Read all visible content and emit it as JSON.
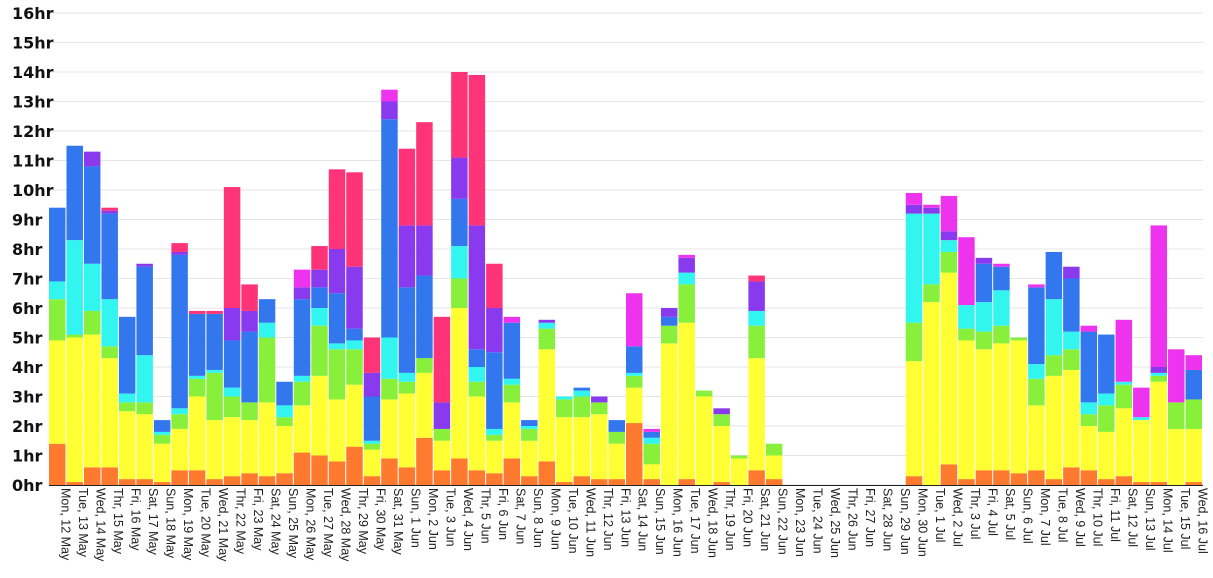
{
  "chart_data": {
    "type": "bar",
    "stacked": true,
    "title": "",
    "xlabel": "",
    "ylabel": "",
    "ylim": [
      0,
      16
    ],
    "grid": true,
    "legend": "none",
    "y_ticks": [
      "0hr",
      "1hr",
      "2hr",
      "3hr",
      "4hr",
      "5hr",
      "6hr",
      "7hr",
      "8hr",
      "9hr",
      "10hr",
      "11hr",
      "12hr",
      "13hr",
      "14hr",
      "15hr",
      "16hr"
    ],
    "categories": [
      "Mon, 12 May",
      "Tue, 13 May",
      "Wed, 14 May",
      "Thr, 15 May",
      "Fri, 16 May",
      "Sat, 17 May",
      "Sun, 18 May",
      "Mon, 19 May",
      "Tue, 20 May",
      "Wed, 21 May",
      "Thr, 22 May",
      "Fri, 23 May",
      "Sat, 24 May",
      "Sun, 25 May",
      "Mon, 26 May",
      "Tue, 27 May",
      "Wed, 28 May",
      "Thr, 29 May",
      "Fri, 30 May",
      "Sat, 31 May",
      "Sun, 1 Jun",
      "Mon, 2 Jun",
      "Tue, 3 Jun",
      "Wed, 4 Jun",
      "Thr, 5 Jun",
      "Fri, 6 Jun",
      "Sat, 7 Jun",
      "Sun, 8 Jun",
      "Mon, 9 Jun",
      "Tue, 10 Jun",
      "Wed, 11 Jun",
      "Thr, 12 Jun",
      "Fri, 13 Jun",
      "Sat, 14 Jun",
      "Sun, 15 Jun",
      "Mon, 16 Jun",
      "Tue, 17 Jun",
      "Wed, 18 Jun",
      "Thr, 19 Jun",
      "Fri, 20 Jun",
      "Sat, 21 Jun",
      "Sun, 22 Jun",
      "Mon, 23 Jun",
      "Tue, 24 Jun",
      "Wed, 25 Jun",
      "Thr, 26 Jun",
      "Fri, 27 Jun",
      "Sat, 28 Jun",
      "Sun, 29 Jun",
      "Mon, 30 Jun",
      "Tue, 1 Jul",
      "Wed, 2 Jul",
      "Thr, 3 Jul",
      "Fri, 4 Jul",
      "Sat, 5 Jul",
      "Sun, 6 Jul",
      "Mon, 7 Jul",
      "Tue, 8 Jul",
      "Wed, 9 Jul",
      "Thr, 10 Jul",
      "Fri, 11 Jul",
      "Sat, 12 Jul",
      "Sun, 13 Jul",
      "Mon, 14 Jul",
      "Tue, 15 Jul",
      "Wed, 16 Jul"
    ],
    "colors": [
      "#ff7a2e",
      "#ffff33",
      "#88f03a",
      "#33f5f0",
      "#3377ee",
      "#8a3aee",
      "#ee33ee",
      "#ff3377"
    ],
    "series": [
      {
        "values": [
          1.4,
          0.1,
          0.6,
          0.6,
          0.2,
          0.2,
          0.1,
          0.5,
          0.5,
          0.2,
          0.3,
          0.4,
          0.3,
          0.4,
          1.1,
          1.0,
          0.8,
          1.3,
          0.3,
          0.9,
          0.6,
          1.6,
          0.5,
          0.9,
          0.5,
          0.4,
          0.9,
          0.3,
          0.8,
          0.1,
          0.3,
          0.2,
          0.2,
          2.1,
          0.2,
          0.0,
          0.2,
          0.0,
          0.1,
          0.0,
          0.5,
          0.2,
          0,
          0,
          0,
          0,
          0,
          0,
          0,
          0.3,
          0.0,
          0.7,
          0.2,
          0.5,
          0.5,
          0.4,
          0.5,
          0.2,
          0.6,
          0.5,
          0.2,
          0.3,
          0.1,
          0.1,
          0.0,
          0.1
        ]
      },
      {
        "values": [
          3.5,
          4.9,
          4.5,
          3.7,
          2.3,
          2.2,
          1.3,
          1.4,
          2.5,
          2.0,
          2.0,
          1.8,
          2.5,
          1.6,
          1.6,
          2.7,
          2.1,
          2.1,
          0.9,
          2.0,
          2.5,
          2.2,
          1.0,
          5.1,
          2.5,
          1.1,
          1.9,
          1.2,
          3.8,
          2.2,
          2.0,
          2.2,
          1.2,
          1.2,
          0.5,
          4.8,
          5.3,
          3.0,
          1.9,
          0.9,
          3.8,
          0.8,
          0,
          0,
          0,
          0,
          0,
          0,
          0,
          3.9,
          6.2,
          6.5,
          4.7,
          4.1,
          4.3,
          4.5,
          2.2,
          3.5,
          3.3,
          1.5,
          1.6,
          2.3,
          2.1,
          3.4,
          1.9,
          1.8
        ]
      },
      {
        "values": [
          1.4,
          0.1,
          0.8,
          0.4,
          0.3,
          0.4,
          0.3,
          0.5,
          0.6,
          1.6,
          0.7,
          0.6,
          2.2,
          0.3,
          0.8,
          1.7,
          1.7,
          1.2,
          0.2,
          0.7,
          0.4,
          0.5,
          0.4,
          1.0,
          0.5,
          0.2,
          0.6,
          0.4,
          0.7,
          0.6,
          0.7,
          0.4,
          0.4,
          0.4,
          0.7,
          0.6,
          1.3,
          0.2,
          0.4,
          0.1,
          1.1,
          0.4,
          0,
          0,
          0,
          0,
          0,
          0,
          0,
          1.3,
          0.6,
          0.7,
          0.4,
          0.6,
          0.6,
          0.1,
          0.9,
          0.7,
          0.7,
          0.4,
          0.9,
          0.8,
          0.0,
          0.2,
          0.9,
          1.0
        ]
      },
      {
        "values": [
          0.6,
          3.2,
          1.6,
          1.6,
          0.3,
          1.6,
          0.1,
          0.2,
          0.1,
          0.1,
          0.3,
          0.0,
          0.5,
          0.4,
          0.2,
          0.6,
          0.2,
          0.3,
          0.1,
          1.4,
          0.3,
          0.0,
          0.0,
          1.1,
          0.5,
          0.2,
          0.2,
          0.1,
          0.2,
          0.1,
          0.2,
          0.0,
          0.0,
          0.1,
          0.2,
          0.0,
          0.4,
          0.0,
          0.0,
          0.0,
          0.5,
          0.0,
          0,
          0,
          0,
          0,
          0,
          0,
          0,
          3.7,
          2.4,
          0.4,
          0.8,
          1.0,
          1.2,
          0.0,
          0.5,
          1.9,
          0.6,
          0.4,
          0.4,
          0.1,
          0.1,
          0.1,
          0.0,
          0.0
        ]
      },
      {
        "values": [
          2.5,
          3.2,
          3.3,
          2.9,
          2.6,
          3.0,
          0.4,
          5.2,
          2.1,
          1.9,
          1.6,
          2.4,
          0.8,
          0.8,
          2.6,
          0.7,
          1.7,
          0.4,
          1.5,
          7.4,
          2.9,
          2.8,
          0.0,
          1.6,
          0.6,
          2.6,
          1.9,
          0.2,
          0.0,
          0.0,
          0.1,
          0.0,
          0.4,
          0.9,
          0.2,
          0.3,
          0.0,
          0.0,
          0.0,
          0.0,
          0.0,
          0.0,
          0,
          0,
          0,
          0,
          0,
          0,
          0,
          0.0,
          0.0,
          0.0,
          0.0,
          1.3,
          0.8,
          0.0,
          2.6,
          1.6,
          1.8,
          2.4,
          2.0,
          0.0,
          0.0,
          0.0,
          0.0,
          1.0
        ]
      },
      {
        "values": [
          0.0,
          0.0,
          0.5,
          0.1,
          0.0,
          0.1,
          0.0,
          0.1,
          0.0,
          0.0,
          1.1,
          0.7,
          0.0,
          0.0,
          0.4,
          0.6,
          1.5,
          2.1,
          0.8,
          0.6,
          2.1,
          1.7,
          0.9,
          1.4,
          4.2,
          1.5,
          0.0,
          0.0,
          0.1,
          0.0,
          0.0,
          0.2,
          0.0,
          0.0,
          0.0,
          0.3,
          0.5,
          0.0,
          0.2,
          0.0,
          1.0,
          0.0,
          0,
          0,
          0,
          0,
          0,
          0,
          0,
          0.3,
          0.2,
          0.3,
          0.0,
          0.2,
          0.0,
          0.0,
          0.0,
          0.0,
          0.4,
          0.0,
          0.0,
          0.0,
          0.0,
          0.2,
          0.0,
          0.0
        ]
      },
      {
        "values": [
          0.0,
          0.0,
          0.0,
          0.0,
          0.0,
          0.0,
          0.0,
          0.0,
          0.0,
          0.0,
          0.0,
          0.0,
          0.0,
          0.0,
          0.6,
          0.0,
          0.0,
          0.0,
          0.0,
          0.4,
          0.0,
          0.0,
          0.0,
          0.0,
          0.0,
          0.0,
          0.2,
          0.0,
          0.0,
          0.0,
          0.0,
          0.0,
          0.0,
          1.8,
          0.1,
          0.0,
          0.1,
          0.0,
          0.0,
          0.0,
          0.0,
          0.0,
          0,
          0,
          0,
          0,
          0,
          0,
          0,
          0.4,
          0.1,
          1.2,
          2.3,
          0.0,
          0.1,
          0.0,
          0.1,
          0.0,
          0.0,
          0.2,
          0.0,
          2.1,
          1.0,
          4.8,
          1.8,
          0.5
        ]
      },
      {
        "values": [
          0.0,
          0.0,
          0.0,
          0.1,
          0.0,
          0.0,
          0.0,
          0.3,
          0.1,
          0.1,
          4.1,
          0.9,
          0.0,
          0.0,
          0.0,
          0.8,
          2.7,
          3.2,
          1.2,
          0.0,
          2.6,
          3.5,
          2.9,
          2.9,
          5.1,
          1.5,
          0.0,
          0.0,
          0.0,
          0.0,
          0.0,
          0.0,
          0.0,
          0.0,
          0.0,
          0.0,
          0.0,
          0.0,
          0.0,
          0.0,
          0.2,
          0.0,
          0,
          0,
          0,
          0,
          0,
          0,
          0,
          0.0,
          0.0,
          0.0,
          0.0,
          0.0,
          0.0,
          0.0,
          0.0,
          0.0,
          0.0,
          0.0,
          0.0,
          0.0,
          0.0,
          0.0,
          0.0,
          0.0
        ]
      }
    ]
  }
}
